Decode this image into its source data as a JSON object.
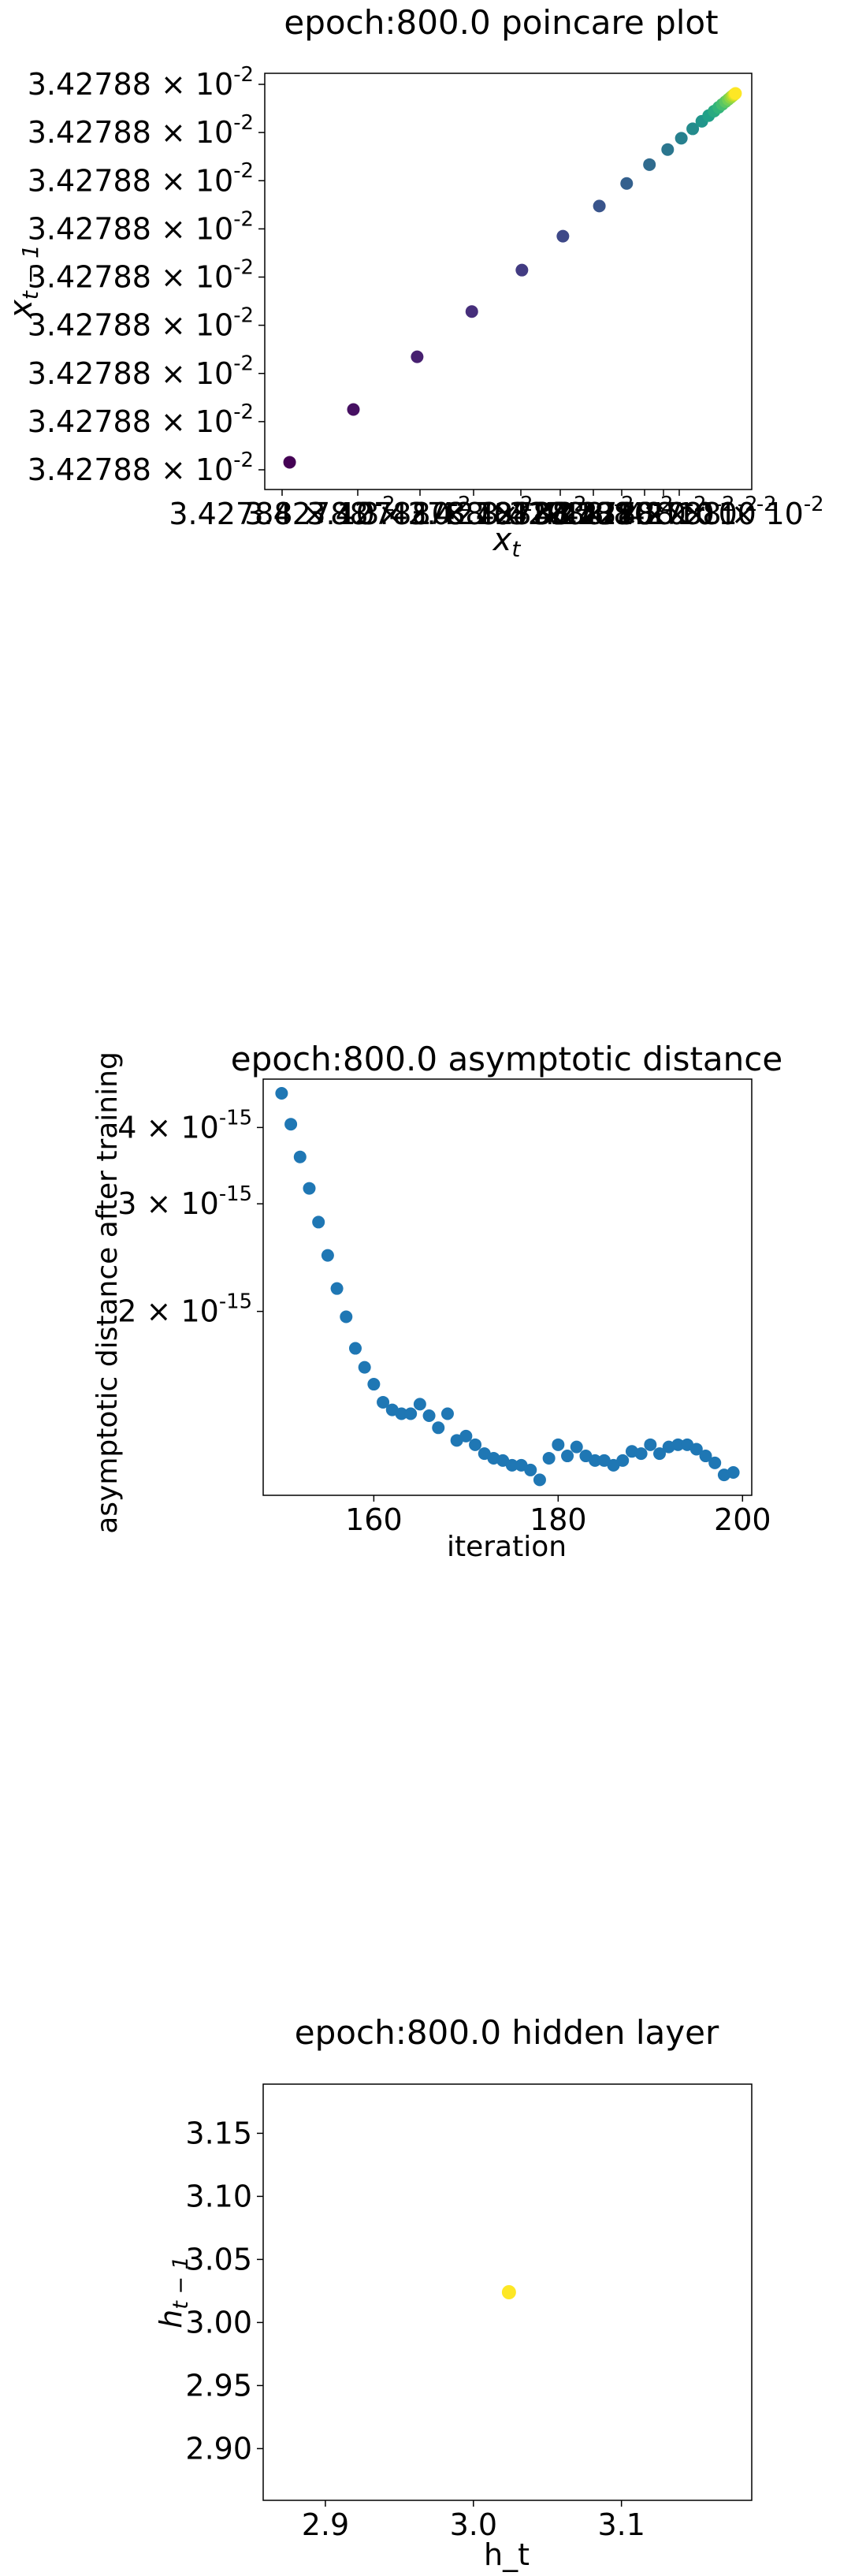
{
  "chart_data": [
    {
      "type": "scatter",
      "title": "epoch:800.0 poincare plot",
      "xlabel": "x_t",
      "ylabel": "x_{t-1}",
      "colormap": "viridis",
      "y_tick_labels": [
        "3.42788 × 10^-2",
        "3.42788 × 10^-2",
        "3.42788 × 10^-2",
        "3.42788 × 10^-2",
        "3.42788 × 10^-2",
        "3.42788 × 10^-2",
        "3.42788 × 10^-2",
        "3.42788 × 10^-2",
        "3.42788 × 10^-2"
      ],
      "x_tick_labels_note": "overlapping identical labels 3.42788 × 10^-2",
      "x_tick_label": "3.42788 × 10^-2",
      "xlim": [
        0,
        1
      ],
      "ylim": [
        0,
        1
      ],
      "points_x": [
        0.02,
        0.16,
        0.3,
        0.42,
        0.53,
        0.62,
        0.7,
        0.76,
        0.81,
        0.85,
        0.88,
        0.905,
        0.925,
        0.94,
        0.952,
        0.962,
        0.97,
        0.977,
        0.983,
        0.988,
        0.992,
        0.995,
        0.997,
        0.999
      ],
      "points_y": [
        0.02,
        0.16,
        0.3,
        0.42,
        0.53,
        0.62,
        0.7,
        0.76,
        0.81,
        0.85,
        0.88,
        0.905,
        0.925,
        0.94,
        0.952,
        0.962,
        0.97,
        0.977,
        0.983,
        0.988,
        0.992,
        0.995,
        0.997,
        0.999
      ]
    },
    {
      "type": "scatter",
      "title": "epoch:800.0 asymptotic distance",
      "xlabel": "iteration",
      "ylabel": "asymptotic distance after training",
      "yscale": "log",
      "color": "#1f77b4",
      "xlim": [
        148,
        201
      ],
      "ylim": [
        1e-15,
        4.8e-15
      ],
      "x_ticks": [
        160,
        180,
        200
      ],
      "y_ticks": [
        {
          "value": 4e-15,
          "label": "4 × 10^-15"
        },
        {
          "value": 3e-15,
          "label": "3 × 10^-15"
        },
        {
          "value": 2e-15,
          "label": "2 × 10^-15"
        }
      ],
      "x": [
        150,
        151,
        152,
        153,
        154,
        155,
        156,
        157,
        158,
        159,
        160,
        161,
        162,
        163,
        164,
        165,
        166,
        167,
        168,
        169,
        170,
        171,
        172,
        173,
        174,
        175,
        176,
        177,
        178,
        179,
        180,
        181,
        182,
        183,
        184,
        185,
        186,
        187,
        188,
        189,
        190,
        191,
        192,
        193,
        194,
        195,
        196,
        197,
        198,
        199
      ],
      "y": [
        4.55e-15,
        4.05e-15,
        3.58e-15,
        3.18e-15,
        2.8e-15,
        2.47e-15,
        2.18e-15,
        1.96e-15,
        1.74e-15,
        1.62e-15,
        1.52e-15,
        1.42e-15,
        1.38e-15,
        1.36e-15,
        1.36e-15,
        1.41e-15,
        1.35e-15,
        1.29e-15,
        1.36e-15,
        1.23e-15,
        1.25e-15,
        1.21e-15,
        1.17e-15,
        1.15e-15,
        1.14e-15,
        1.12e-15,
        1.12e-15,
        1.1e-15,
        1.06e-15,
        1.15e-15,
        1.21e-15,
        1.16e-15,
        1.2e-15,
        1.16e-15,
        1.14e-15,
        1.14e-15,
        1.12e-15,
        1.14e-15,
        1.18e-15,
        1.17e-15,
        1.21e-15,
        1.17e-15,
        1.2e-15,
        1.21e-15,
        1.21e-15,
        1.19e-15,
        1.16e-15,
        1.13e-15,
        1.08e-15,
        1.09e-15
      ]
    },
    {
      "type": "scatter",
      "title": "epoch:800.0 hidden layer",
      "xlabel": "h_t",
      "ylabel": "h_{t-1}",
      "color": "#fde725",
      "xlim": [
        2.858,
        3.188
      ],
      "ylim": [
        2.859,
        3.189
      ],
      "x_ticks": [
        2.9,
        3.0,
        3.1
      ],
      "y_ticks": [
        2.9,
        2.95,
        3.0,
        3.05,
        3.1,
        3.15
      ],
      "x_tick_labels": [
        "2.9",
        "3.0",
        "3.1"
      ],
      "y_tick_labels": [
        "2.90",
        "2.95",
        "3.00",
        "3.05",
        "3.10",
        "3.15"
      ],
      "x": [
        3.024
      ],
      "y": [
        3.024
      ]
    }
  ]
}
